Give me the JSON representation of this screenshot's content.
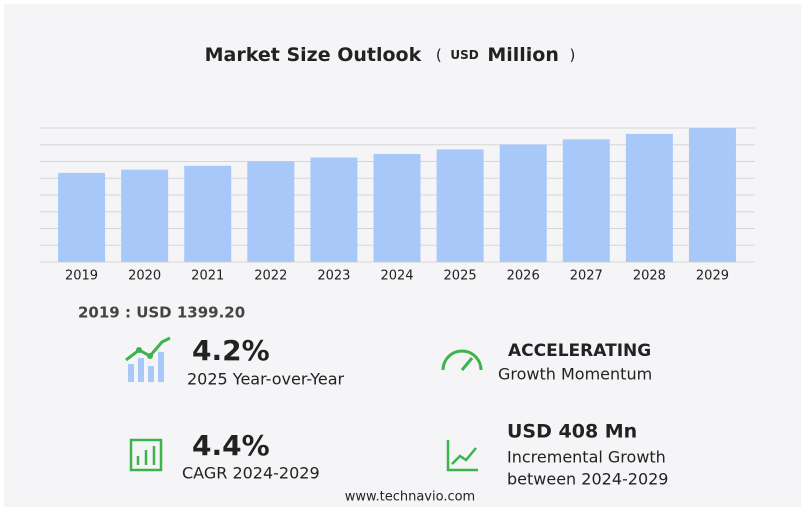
{
  "chart_data": {
    "type": "bar",
    "title": "Market Size Outlook",
    "unit_open": "(",
    "unit_prefix": "USD",
    "unit": "Million",
    "unit_close": ")",
    "categories": [
      "2019",
      "2020",
      "2021",
      "2022",
      "2023",
      "2024",
      "2025",
      "2026",
      "2027",
      "2028",
      "2029"
    ],
    "values": [
      1399.2,
      1450,
      1510,
      1580,
      1640,
      1696,
      1767,
      1845,
      1926,
      2012,
      2104
    ],
    "color": "#a8c8fa",
    "ylim": [
      0,
      2104
    ]
  },
  "highlight": "2019 : USD  1399.20",
  "stats": [
    {
      "value": "4.2%",
      "label_lines": [
        "2025 Year-over-Year"
      ]
    },
    {
      "value": "ACCELERATING",
      "label_lines": [
        "Growth Momentum"
      ]
    },
    {
      "value": "4.4%",
      "label_lines": [
        "CAGR 2024-2029"
      ]
    },
    {
      "value": "USD 408 Mn",
      "label_lines": [
        "Incremental Growth",
        "between 2024-2029"
      ]
    }
  ],
  "footer": "www.technavio.com"
}
